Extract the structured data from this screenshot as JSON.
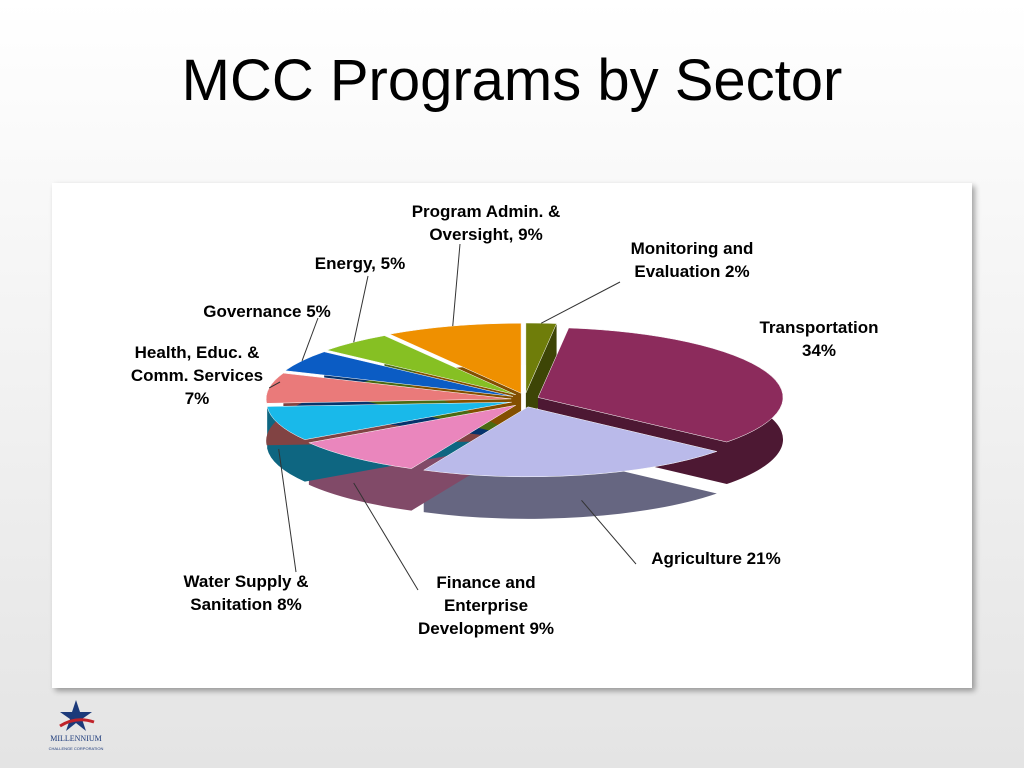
{
  "chart_data": {
    "type": "pie",
    "title": "MCC Programs by Sector",
    "values": [
      2,
      34,
      21,
      9,
      8,
      7,
      5,
      5,
      9
    ],
    "value_labels": [
      [
        "Monitoring and",
        "Evaluation 2%"
      ],
      [
        "Transportation",
        "34%"
      ],
      [
        "Agriculture 21%"
      ],
      [
        "Finance and",
        "Enterprise",
        "Development 9%"
      ],
      [
        "Water Supply &",
        "Sanitation 8%"
      ],
      [
        "Health, Educ. &",
        "Comm. Services",
        "7%"
      ],
      [
        "Governance  5%"
      ],
      [
        "Energy, 5%"
      ],
      [
        "Program Admin. &",
        "Oversight, 9%"
      ]
    ],
    "colors": [
      "#6f7d0a",
      "#8c2b5c",
      "#babaea",
      "#ea86bd",
      "#19b9ea",
      "#ea7a7a",
      "#0b5cc4",
      "#86c023",
      "#ef9000"
    ]
  },
  "logo": {
    "name": "MILLENNIUM",
    "subtitle": "CHALLENGE CORPORATION"
  }
}
